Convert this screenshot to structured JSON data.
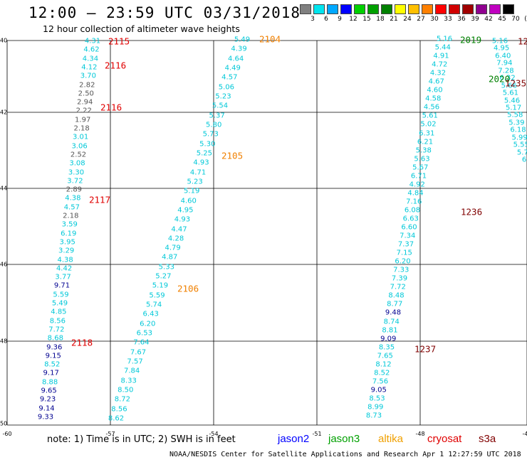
{
  "title": "12:00 — 23:59 UTC 03/31/2018",
  "subtitle": "12 hour collection of altimeter wave heights",
  "scale": {
    "labels": [
      "3",
      "6",
      "9",
      "12",
      "15",
      "18",
      "21",
      "24",
      "27",
      "30",
      "33",
      "36",
      "39",
      "42",
      "45",
      "70",
      "(ft)"
    ],
    "colors": [
      "#808080",
      "#00e5ee",
      "#00a8ff",
      "#0000ff",
      "#00d000",
      "#00a000",
      "#008000",
      "#ffff00",
      "#ffc000",
      "#ff8000",
      "#ff0000",
      "#d00000",
      "#a00000",
      "#900090",
      "#c000c0",
      "#000000"
    ]
  },
  "colors": {
    "grey": "#555555",
    "cyan": "#00c8d8",
    "blue": "#000090",
    "red": "#e00000",
    "orange": "#f08000",
    "green": "#008000",
    "darkred": "#800000"
  },
  "lat_labels": [
    "40",
    "42",
    "44",
    "46",
    "48",
    "50"
  ],
  "lon_labels": [
    "-60",
    "-57",
    "-54",
    "-51",
    "-48",
    "-45"
  ],
  "passes": [
    {
      "label": "2115",
      "color": "red"
    },
    {
      "label": "2116",
      "color": "red"
    },
    {
      "label": "2116",
      "color": "red"
    },
    {
      "label": "2117",
      "color": "red"
    },
    {
      "label": "2118",
      "color": "red"
    },
    {
      "label": "2104",
      "color": "orange"
    },
    {
      "label": "2105",
      "color": "orange"
    },
    {
      "label": "2106",
      "color": "orange"
    },
    {
      "label": "2019",
      "color": "green"
    },
    {
      "label": "2020",
      "color": "green"
    },
    {
      "label": "1235",
      "color": "darkred"
    },
    {
      "label": "1236",
      "color": "darkred"
    },
    {
      "label": "1237",
      "color": "darkred"
    },
    {
      "label": "12",
      "color": "darkred"
    }
  ],
  "tracks": {
    "west": [
      [
        "4.31",
        "cyan"
      ],
      [
        "4.62",
        "cyan"
      ],
      [
        "4.34",
        "cyan"
      ],
      [
        "4.12",
        "cyan"
      ],
      [
        "3.70",
        "cyan"
      ],
      [
        "2.82",
        "grey"
      ],
      [
        "2.50",
        "grey"
      ],
      [
        "2.94",
        "grey"
      ],
      [
        "2.22",
        "grey"
      ],
      [
        "1.97",
        "grey"
      ],
      [
        "2.18",
        "grey"
      ],
      [
        "3.01",
        "cyan"
      ],
      [
        "3.06",
        "cyan"
      ],
      [
        "2.52",
        "grey"
      ],
      [
        "3.08",
        "cyan"
      ],
      [
        "3.30",
        "cyan"
      ],
      [
        "3.72",
        "cyan"
      ],
      [
        "2.89",
        "grey"
      ],
      [
        "4.38",
        "cyan"
      ],
      [
        "4.57",
        "cyan"
      ],
      [
        "2.18",
        "grey"
      ],
      [
        "3.59",
        "cyan"
      ],
      [
        "6.19",
        "cyan"
      ],
      [
        "3.95",
        "cyan"
      ],
      [
        "3.29",
        "cyan"
      ],
      [
        "4.38",
        "cyan"
      ],
      [
        "4.42",
        "cyan"
      ],
      [
        "3.77",
        "cyan"
      ],
      [
        "9.71",
        "blue"
      ],
      [
        "5.59",
        "cyan"
      ],
      [
        "5.49",
        "cyan"
      ],
      [
        "4.85",
        "cyan"
      ],
      [
        "8.56",
        "cyan"
      ],
      [
        "7.72",
        "cyan"
      ],
      [
        "8.68",
        "cyan"
      ],
      [
        "9.36",
        "blue"
      ],
      [
        "9.15",
        "blue"
      ],
      [
        "8.52",
        "cyan"
      ],
      [
        "9.17",
        "blue"
      ],
      [
        "8.88",
        "cyan"
      ],
      [
        "9.65",
        "blue"
      ],
      [
        "9.23",
        "blue"
      ],
      [
        "9.14",
        "blue"
      ],
      [
        "9.33",
        "blue"
      ]
    ],
    "middle": [
      [
        "5.49",
        "cyan"
      ],
      [
        "4.39",
        "cyan"
      ],
      [
        "4.64",
        "cyan"
      ],
      [
        "4.49",
        "cyan"
      ],
      [
        "4.57",
        "cyan"
      ],
      [
        "5.06",
        "cyan"
      ],
      [
        "5.23",
        "cyan"
      ],
      [
        "5.54",
        "cyan"
      ],
      [
        "5.37",
        "cyan"
      ],
      [
        "5.80",
        "cyan"
      ],
      [
        "5.73",
        "cyan"
      ],
      [
        "5.30",
        "cyan"
      ],
      [
        "5.25",
        "cyan"
      ],
      [
        "4.93",
        "cyan"
      ],
      [
        "4.71",
        "cyan"
      ],
      [
        "5.23",
        "cyan"
      ],
      [
        "5.19",
        "cyan"
      ],
      [
        "4.60",
        "cyan"
      ],
      [
        "4.95",
        "cyan"
      ],
      [
        "4.93",
        "cyan"
      ],
      [
        "4.47",
        "cyan"
      ],
      [
        "4.28",
        "cyan"
      ],
      [
        "4.79",
        "cyan"
      ],
      [
        "4.87",
        "cyan"
      ],
      [
        "5.33",
        "cyan"
      ],
      [
        "5.27",
        "cyan"
      ],
      [
        "5.19",
        "cyan"
      ],
      [
        "5.59",
        "cyan"
      ],
      [
        "5.74",
        "cyan"
      ],
      [
        "6.43",
        "cyan"
      ],
      [
        "6.20",
        "cyan"
      ],
      [
        "6.53",
        "cyan"
      ],
      [
        "7.64",
        "cyan"
      ],
      [
        "7.67",
        "cyan"
      ],
      [
        "7.57",
        "cyan"
      ],
      [
        "7.84",
        "cyan"
      ],
      [
        "8.33",
        "cyan"
      ],
      [
        "8.50",
        "cyan"
      ],
      [
        "8.72",
        "cyan"
      ],
      [
        "8.56",
        "cyan"
      ],
      [
        "8.62",
        "cyan"
      ]
    ],
    "east": [
      [
        "5.16",
        "cyan"
      ],
      [
        "5.44",
        "cyan"
      ],
      [
        "4.91",
        "cyan"
      ],
      [
        "4.72",
        "cyan"
      ],
      [
        "4.32",
        "cyan"
      ],
      [
        "4.67",
        "cyan"
      ],
      [
        "4.60",
        "cyan"
      ],
      [
        "4.58",
        "cyan"
      ],
      [
        "4.56",
        "cyan"
      ],
      [
        "5.61",
        "cyan"
      ],
      [
        "5.02",
        "cyan"
      ],
      [
        "6.31",
        "cyan"
      ],
      [
        "6.21",
        "cyan"
      ],
      [
        "5.38",
        "cyan"
      ],
      [
        "5.63",
        "cyan"
      ],
      [
        "5.67",
        "cyan"
      ],
      [
        "6.71",
        "cyan"
      ],
      [
        "4.92",
        "cyan"
      ],
      [
        "4.84",
        "cyan"
      ],
      [
        "7.16",
        "cyan"
      ],
      [
        "6.08",
        "cyan"
      ],
      [
        "6.63",
        "cyan"
      ],
      [
        "6.60",
        "cyan"
      ],
      [
        "7.34",
        "cyan"
      ],
      [
        "7.37",
        "cyan"
      ],
      [
        "7.15",
        "cyan"
      ],
      [
        "6.20",
        "cyan"
      ],
      [
        "7.33",
        "cyan"
      ],
      [
        "7.39",
        "cyan"
      ],
      [
        "7.72",
        "cyan"
      ],
      [
        "8.48",
        "cyan"
      ],
      [
        "8.77",
        "cyan"
      ],
      [
        "9.48",
        "blue"
      ],
      [
        "8.74",
        "cyan"
      ],
      [
        "8.81",
        "cyan"
      ],
      [
        "9.09",
        "blue"
      ],
      [
        "8.35",
        "cyan"
      ],
      [
        "7.65",
        "cyan"
      ],
      [
        "8.12",
        "cyan"
      ],
      [
        "8.52",
        "cyan"
      ],
      [
        "7.56",
        "cyan"
      ],
      [
        "9.05",
        "blue"
      ],
      [
        "8.53",
        "cyan"
      ],
      [
        "8.99",
        "cyan"
      ],
      [
        "8.73",
        "cyan"
      ]
    ],
    "northeast": [
      [
        "5.16",
        "cyan"
      ],
      [
        "4.95",
        "cyan"
      ],
      [
        "6.40",
        "cyan"
      ],
      [
        "7.94",
        "cyan"
      ],
      [
        "7.28",
        "cyan"
      ],
      [
        "6.32",
        "cyan"
      ],
      [
        "5.66",
        "cyan"
      ],
      [
        "5.61",
        "cyan"
      ],
      [
        "5.46",
        "cyan"
      ],
      [
        "5.17",
        "cyan"
      ],
      [
        "5.58",
        "cyan"
      ],
      [
        "5.39",
        "cyan"
      ],
      [
        "6.18",
        "cyan"
      ],
      [
        "5.99",
        "cyan"
      ],
      [
        "5.55",
        "cyan"
      ],
      [
        "5.7",
        "cyan"
      ],
      [
        "6",
        "cyan"
      ]
    ]
  },
  "note": "note:  1) Time is in UTC; 2) SWH is in feet",
  "satellites": [
    {
      "name": "jason2",
      "color": "#0000ff"
    },
    {
      "name": "jason3",
      "color": "#00a000"
    },
    {
      "name": "altika",
      "color": "#f0a000"
    },
    {
      "name": "cryosat",
      "color": "#e00000"
    },
    {
      "name": "s3a",
      "color": "#800000"
    }
  ],
  "credit": "NOAA/NESDIS Center for Satellite Applications and Research   Apr  1 12:27:59 UTC 2018"
}
